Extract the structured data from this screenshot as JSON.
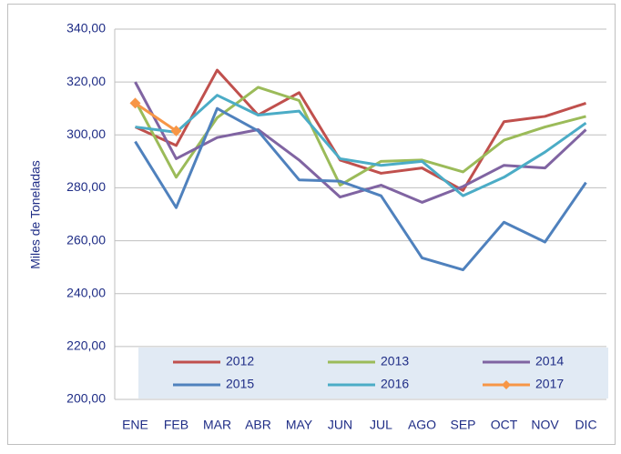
{
  "chart_data": {
    "type": "line",
    "y_label": "Miles de Toneladas",
    "categories": [
      "ENE",
      "FEB",
      "MAR",
      "ABR",
      "MAY",
      "JUN",
      "JUL",
      "AGO",
      "SEP",
      "OCT",
      "NOV",
      "DIC"
    ],
    "series": [
      {
        "name": "2012",
        "color": "#c0504d",
        "values": [
          303,
          296,
          324.5,
          307.5,
          316,
          290.5,
          285.5,
          287.5,
          279,
          305,
          307,
          312
        ]
      },
      {
        "name": "2013",
        "color": "#9bbb59",
        "values": [
          313,
          284,
          306.5,
          318,
          313,
          281,
          290,
          290.5,
          286,
          298,
          303,
          307
        ]
      },
      {
        "name": "2014",
        "color": "#8064a2",
        "values": [
          320,
          291,
          299,
          302,
          290.5,
          276.5,
          281,
          274.5,
          280.5,
          288.5,
          287.5,
          302
        ]
      },
      {
        "name": "2015",
        "color": "#4f81bd",
        "values": [
          297.5,
          272.5,
          310,
          301.5,
          283,
          282.5,
          277,
          253.5,
          249,
          267,
          259.5,
          282
        ]
      },
      {
        "name": "2016",
        "color": "#4bacc6",
        "values": [
          303,
          301,
          315,
          307.5,
          309,
          291,
          288.5,
          290,
          277,
          284,
          293.5,
          304.5
        ]
      },
      {
        "name": "2017",
        "color": "#f79646",
        "marker": "diamond",
        "values": [
          312,
          301.5,
          null,
          null,
          null,
          null,
          null,
          null,
          null,
          null,
          null,
          null
        ]
      }
    ],
    "ylim": [
      200,
      340
    ],
    "yticks": [
      {
        "value": 200,
        "label": "200,00"
      },
      {
        "value": 220,
        "label": "220,00"
      },
      {
        "value": 240,
        "label": "240,00"
      },
      {
        "value": 260,
        "label": "260,00"
      },
      {
        "value": 280,
        "label": "280,00"
      },
      {
        "value": 300,
        "label": "300,00"
      },
      {
        "value": 320,
        "label": "320,00"
      },
      {
        "value": 340,
        "label": "340,00"
      }
    ],
    "grid": true,
    "legend": "bottom"
  }
}
